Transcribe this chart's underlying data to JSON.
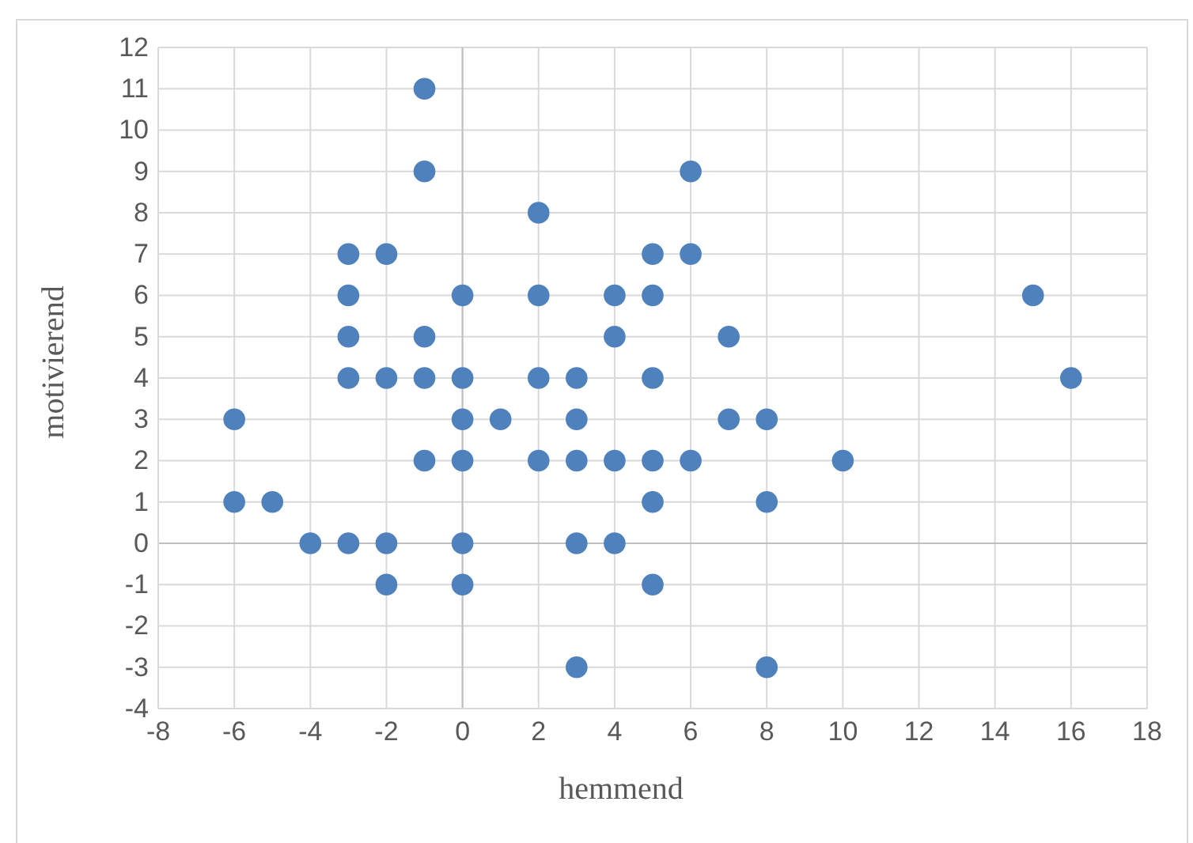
{
  "chart_data": {
    "type": "scatter",
    "xlabel": "hemmend",
    "ylabel": "motivierend",
    "xlim": [
      -8,
      18
    ],
    "ylim": [
      -4,
      12
    ],
    "xticks": [
      -8,
      -6,
      -4,
      -2,
      0,
      2,
      4,
      6,
      8,
      10,
      12,
      14,
      16,
      18
    ],
    "yticks": [
      -4,
      -3,
      -2,
      -1,
      0,
      1,
      2,
      3,
      4,
      5,
      6,
      7,
      8,
      9,
      10,
      11,
      12
    ],
    "grid": true,
    "marker": "circle",
    "series": [
      {
        "color": "#4f81bd",
        "x": [
          -1,
          -1,
          6,
          2,
          -3,
          -2,
          5,
          6,
          -3,
          0,
          2,
          4,
          5,
          15,
          -3,
          -1,
          4,
          7,
          -3,
          -2,
          -1,
          0,
          2,
          3,
          5,
          16,
          -6,
          0,
          1,
          3,
          7,
          8,
          -1,
          0,
          2,
          3,
          4,
          5,
          6,
          10,
          -6,
          -5,
          5,
          8,
          -4,
          -3,
          -2,
          0,
          3,
          4,
          -2,
          0,
          5,
          3,
          8
        ],
        "values": [
          11,
          9,
          9,
          8,
          7,
          7,
          7,
          7,
          6,
          6,
          6,
          6,
          6,
          6,
          5,
          5,
          5,
          5,
          4,
          4,
          4,
          4,
          4,
          4,
          4,
          4,
          3,
          3,
          3,
          3,
          3,
          3,
          2,
          2,
          2,
          2,
          2,
          2,
          2,
          2,
          1,
          1,
          1,
          1,
          0,
          0,
          0,
          0,
          0,
          0,
          -1,
          -1,
          -1,
          -3,
          -3
        ]
      }
    ]
  }
}
